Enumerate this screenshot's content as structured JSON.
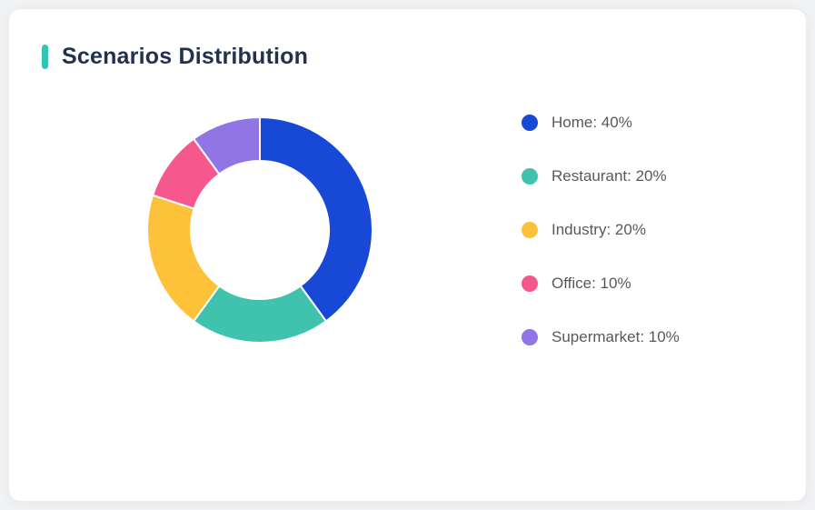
{
  "card": {
    "title": "Scenarios Distribution"
  },
  "colors": {
    "accent": "#2ec4b6",
    "title_text": "#20324e",
    "legend_text": "#595959",
    "card_bg": "#ffffff",
    "page_bg": "#f1f2f4"
  },
  "chart_data": {
    "type": "pie",
    "title": "Scenarios Distribution",
    "donut": true,
    "inner_radius_ratio": 0.61,
    "start_angle_deg": -90,
    "direction": "clockwise",
    "legend_position": "right",
    "segments": [
      {
        "label": "Home",
        "value": 40,
        "color": "#1849d6",
        "legend": "Home: 40%"
      },
      {
        "label": "Restaurant",
        "value": 20,
        "color": "#3fc3ae",
        "legend": "Restaurant: 20%"
      },
      {
        "label": "Industry",
        "value": 20,
        "color": "#fdc23a",
        "legend": "Industry: 20%"
      },
      {
        "label": "Office",
        "value": 10,
        "color": "#f6578d",
        "legend": "Office: 10%"
      },
      {
        "label": "Supermarket",
        "value": 10,
        "color": "#9175e5",
        "legend": "Supermarket: 10%"
      }
    ]
  }
}
